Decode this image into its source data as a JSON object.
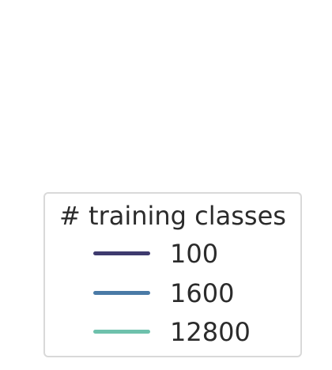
{
  "chart_data": {
    "type": "line",
    "legend": {
      "title": "# training classes",
      "placement": "lower-center",
      "entries": [
        {
          "name": "100",
          "color": "#3e3a6e"
        },
        {
          "name": "1600",
          "color": "#4a7aa6"
        },
        {
          "name": "12800",
          "color": "#6ec1ac"
        }
      ]
    },
    "series": [
      {
        "name": "100"
      },
      {
        "name": "1600"
      },
      {
        "name": "12800"
      }
    ]
  }
}
